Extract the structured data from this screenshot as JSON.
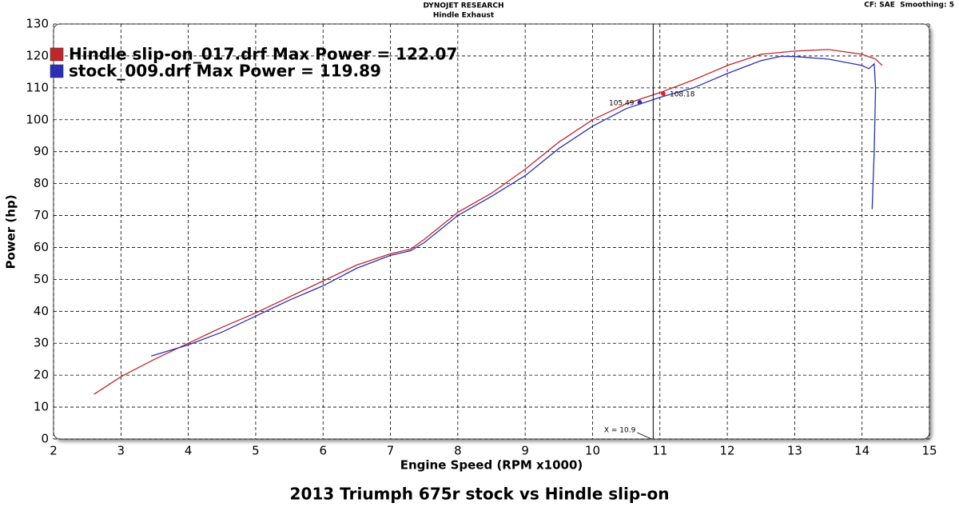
{
  "chart_data": {
    "type": "line",
    "header": "DYNOJET RESEARCH",
    "subheader": "Hindle Exhaust",
    "settings": "CF: SAE  Smoothing: 5",
    "title": "2013 Triumph 675r stock vs Hindle slip-on",
    "x_label": "Engine Speed (RPM x1000)",
    "y_label": "Power (hp)",
    "xlim": [
      2,
      15
    ],
    "ylim": [
      0,
      130
    ],
    "xticks": [
      2,
      3,
      4,
      5,
      6,
      7,
      8,
      9,
      10,
      11,
      12,
      13,
      14,
      15
    ],
    "yticks": [
      0,
      10,
      20,
      30,
      40,
      50,
      60,
      70,
      80,
      90,
      100,
      110,
      120,
      130
    ],
    "grid": true,
    "series": [
      {
        "name": "Hindle slip-on_017.drf Max Power = 122.07",
        "color": "#c0272d",
        "x": [
          2.6,
          3,
          3.5,
          4,
          4.5,
          5,
          5.5,
          6,
          6.5,
          7,
          7.3,
          7.5,
          8,
          8.5,
          9,
          9.5,
          10,
          10.5,
          11,
          11.5,
          12,
          12.5,
          13,
          13.5,
          14,
          14.2,
          14.3
        ],
        "values": [
          14,
          19.5,
          25,
          30,
          35,
          39.5,
          44.5,
          49.5,
          54.5,
          58,
          59.5,
          62.5,
          71,
          77,
          84.5,
          93,
          100,
          105,
          108.5,
          112.5,
          117,
          120.5,
          121.5,
          122,
          120.5,
          119,
          117
        ]
      },
      {
        "name": "stock_009.drf Max Power = 119.89",
        "color": "#2b2fb8",
        "x": [
          3.45,
          4,
          4.5,
          5,
          5.5,
          6,
          6.5,
          7,
          7.3,
          7.5,
          8,
          8.5,
          9,
          9.5,
          10,
          10.5,
          11,
          11.5,
          12,
          12.5,
          12.8,
          13,
          13.5,
          14,
          14.1,
          14.18,
          14.2,
          14.18,
          14.15
        ],
        "values": [
          26,
          29.5,
          33.5,
          38.5,
          43.5,
          48,
          53.5,
          57.5,
          59,
          61.5,
          70,
          76,
          82.5,
          91,
          98,
          103.5,
          107,
          110,
          114.5,
          118.5,
          119.89,
          119.8,
          119,
          117,
          116,
          117.5,
          110,
          90,
          72
        ]
      }
    ],
    "cursor": {
      "x": 10.9,
      "label": "X = 10.9"
    },
    "markers": [
      {
        "x": 10.7,
        "y": 105.49,
        "color": "#2b2fb8"
      },
      {
        "x": 11.05,
        "y": 108.18,
        "color": "#e02020"
      }
    ]
  }
}
